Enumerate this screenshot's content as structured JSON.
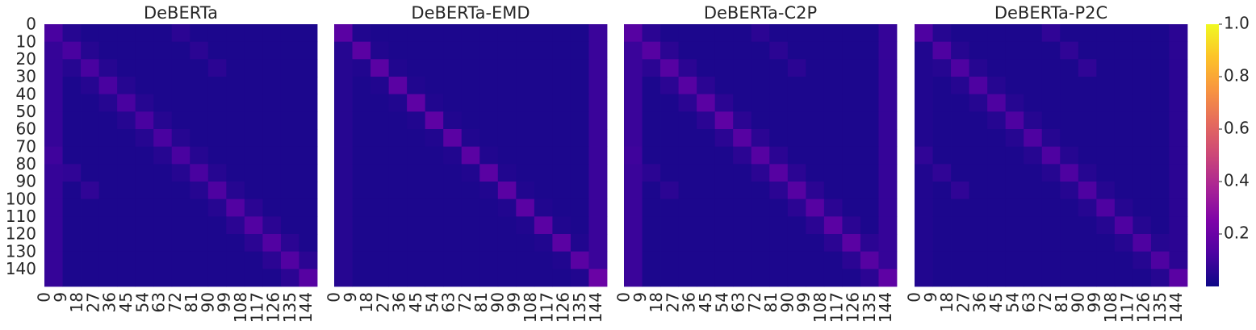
{
  "chart_data": [
    {
      "type": "heatmap",
      "title": "DeBERTa",
      "colormap": "plasma",
      "zlim": [
        0,
        1
      ],
      "xlim": [
        0,
        150
      ],
      "ylim": [
        0,
        150
      ],
      "xticks": [
        0,
        9,
        18,
        27,
        36,
        45,
        54,
        63,
        72,
        81,
        90,
        99,
        108,
        117,
        126,
        135,
        144
      ],
      "yticks": [
        0,
        10,
        20,
        30,
        40,
        50,
        60,
        70,
        80,
        90,
        100,
        110,
        120,
        130,
        140
      ],
      "z": [
        [
          0.12,
          0.05,
          0.03,
          0.03,
          0.03,
          0.03,
          0.03,
          0.06,
          0.03,
          0.03,
          0.03,
          0.03,
          0.03,
          0.03,
          0.03
        ],
        [
          0.08,
          0.12,
          0.05,
          0.03,
          0.03,
          0.03,
          0.03,
          0.03,
          0.06,
          0.03,
          0.03,
          0.03,
          0.03,
          0.03,
          0.03
        ],
        [
          0.08,
          0.05,
          0.12,
          0.05,
          0.03,
          0.03,
          0.03,
          0.03,
          0.03,
          0.06,
          0.03,
          0.03,
          0.03,
          0.03,
          0.03
        ],
        [
          0.08,
          0.03,
          0.05,
          0.12,
          0.05,
          0.03,
          0.03,
          0.03,
          0.03,
          0.03,
          0.03,
          0.03,
          0.03,
          0.03,
          0.03
        ],
        [
          0.08,
          0.03,
          0.03,
          0.05,
          0.12,
          0.05,
          0.03,
          0.03,
          0.03,
          0.03,
          0.03,
          0.03,
          0.03,
          0.03,
          0.03
        ],
        [
          0.08,
          0.03,
          0.03,
          0.03,
          0.05,
          0.12,
          0.05,
          0.03,
          0.03,
          0.03,
          0.03,
          0.03,
          0.03,
          0.03,
          0.03
        ],
        [
          0.08,
          0.03,
          0.03,
          0.03,
          0.03,
          0.05,
          0.12,
          0.05,
          0.03,
          0.03,
          0.03,
          0.03,
          0.03,
          0.03,
          0.03
        ],
        [
          0.1,
          0.03,
          0.03,
          0.03,
          0.03,
          0.03,
          0.05,
          0.12,
          0.05,
          0.03,
          0.03,
          0.03,
          0.03,
          0.03,
          0.03
        ],
        [
          0.08,
          0.07,
          0.03,
          0.03,
          0.03,
          0.03,
          0.03,
          0.05,
          0.12,
          0.05,
          0.03,
          0.03,
          0.03,
          0.03,
          0.03
        ],
        [
          0.08,
          0.03,
          0.07,
          0.03,
          0.03,
          0.03,
          0.03,
          0.03,
          0.05,
          0.13,
          0.05,
          0.03,
          0.03,
          0.03,
          0.03
        ],
        [
          0.08,
          0.03,
          0.03,
          0.03,
          0.03,
          0.03,
          0.03,
          0.03,
          0.03,
          0.05,
          0.14,
          0.06,
          0.03,
          0.03,
          0.03
        ],
        [
          0.08,
          0.03,
          0.03,
          0.03,
          0.03,
          0.03,
          0.03,
          0.03,
          0.03,
          0.03,
          0.06,
          0.14,
          0.06,
          0.03,
          0.03
        ],
        [
          0.08,
          0.03,
          0.03,
          0.03,
          0.03,
          0.03,
          0.03,
          0.03,
          0.03,
          0.03,
          0.03,
          0.06,
          0.14,
          0.06,
          0.03
        ],
        [
          0.08,
          0.03,
          0.03,
          0.03,
          0.03,
          0.03,
          0.03,
          0.03,
          0.03,
          0.03,
          0.03,
          0.03,
          0.06,
          0.14,
          0.06
        ],
        [
          0.08,
          0.03,
          0.03,
          0.03,
          0.03,
          0.03,
          0.03,
          0.03,
          0.03,
          0.03,
          0.03,
          0.03,
          0.03,
          0.06,
          0.15
        ]
      ]
    },
    {
      "type": "heatmap",
      "title": "DeBERTa-EMD",
      "colormap": "plasma",
      "zlim": [
        0,
        1
      ],
      "xlim": [
        0,
        150
      ],
      "ylim": [
        0,
        150
      ],
      "xticks": [
        0,
        9,
        18,
        27,
        36,
        45,
        54,
        63,
        72,
        81,
        90,
        99,
        108,
        117,
        126,
        135,
        144
      ],
      "z": [
        [
          0.16,
          0.04,
          0.03,
          0.03,
          0.03,
          0.03,
          0.03,
          0.03,
          0.03,
          0.03,
          0.03,
          0.03,
          0.03,
          0.03,
          0.09
        ],
        [
          0.05,
          0.16,
          0.04,
          0.03,
          0.03,
          0.03,
          0.03,
          0.03,
          0.03,
          0.03,
          0.03,
          0.03,
          0.03,
          0.03,
          0.09
        ],
        [
          0.05,
          0.04,
          0.16,
          0.04,
          0.03,
          0.03,
          0.03,
          0.03,
          0.03,
          0.03,
          0.03,
          0.03,
          0.03,
          0.03,
          0.09
        ],
        [
          0.05,
          0.03,
          0.04,
          0.16,
          0.04,
          0.03,
          0.03,
          0.03,
          0.03,
          0.03,
          0.03,
          0.03,
          0.03,
          0.03,
          0.09
        ],
        [
          0.05,
          0.03,
          0.03,
          0.04,
          0.17,
          0.04,
          0.03,
          0.03,
          0.03,
          0.03,
          0.03,
          0.03,
          0.03,
          0.03,
          0.09
        ],
        [
          0.05,
          0.03,
          0.03,
          0.03,
          0.04,
          0.17,
          0.04,
          0.03,
          0.03,
          0.03,
          0.03,
          0.03,
          0.03,
          0.03,
          0.09
        ],
        [
          0.05,
          0.03,
          0.03,
          0.03,
          0.03,
          0.04,
          0.16,
          0.04,
          0.03,
          0.03,
          0.03,
          0.03,
          0.03,
          0.03,
          0.09
        ],
        [
          0.05,
          0.03,
          0.03,
          0.03,
          0.03,
          0.03,
          0.04,
          0.16,
          0.04,
          0.03,
          0.03,
          0.03,
          0.03,
          0.03,
          0.09
        ],
        [
          0.05,
          0.03,
          0.03,
          0.03,
          0.03,
          0.03,
          0.03,
          0.04,
          0.16,
          0.04,
          0.03,
          0.03,
          0.03,
          0.03,
          0.09
        ],
        [
          0.05,
          0.03,
          0.03,
          0.03,
          0.03,
          0.03,
          0.03,
          0.03,
          0.04,
          0.16,
          0.04,
          0.03,
          0.03,
          0.03,
          0.09
        ],
        [
          0.05,
          0.03,
          0.03,
          0.03,
          0.03,
          0.03,
          0.03,
          0.03,
          0.03,
          0.04,
          0.16,
          0.04,
          0.03,
          0.03,
          0.09
        ],
        [
          0.05,
          0.03,
          0.03,
          0.03,
          0.03,
          0.03,
          0.03,
          0.03,
          0.03,
          0.03,
          0.04,
          0.16,
          0.04,
          0.03,
          0.09
        ],
        [
          0.05,
          0.03,
          0.03,
          0.03,
          0.03,
          0.03,
          0.03,
          0.03,
          0.03,
          0.03,
          0.03,
          0.04,
          0.16,
          0.04,
          0.09
        ],
        [
          0.05,
          0.03,
          0.03,
          0.03,
          0.03,
          0.03,
          0.03,
          0.03,
          0.03,
          0.03,
          0.03,
          0.03,
          0.04,
          0.16,
          0.09
        ],
        [
          0.05,
          0.03,
          0.03,
          0.03,
          0.03,
          0.03,
          0.03,
          0.03,
          0.03,
          0.03,
          0.03,
          0.03,
          0.03,
          0.04,
          0.2
        ]
      ]
    },
    {
      "type": "heatmap",
      "title": "DeBERTa-C2P",
      "colormap": "plasma",
      "zlim": [
        0,
        1
      ],
      "xlim": [
        0,
        150
      ],
      "ylim": [
        0,
        150
      ],
      "xticks": [
        0,
        9,
        18,
        27,
        36,
        45,
        54,
        63,
        72,
        81,
        90,
        99,
        108,
        117,
        126,
        135,
        144
      ],
      "z": [
        [
          0.15,
          0.06,
          0.03,
          0.03,
          0.03,
          0.03,
          0.03,
          0.06,
          0.03,
          0.03,
          0.03,
          0.03,
          0.03,
          0.03,
          0.08
        ],
        [
          0.09,
          0.15,
          0.06,
          0.03,
          0.03,
          0.03,
          0.03,
          0.03,
          0.06,
          0.03,
          0.03,
          0.03,
          0.03,
          0.03,
          0.08
        ],
        [
          0.09,
          0.06,
          0.15,
          0.06,
          0.03,
          0.03,
          0.03,
          0.03,
          0.03,
          0.06,
          0.03,
          0.03,
          0.03,
          0.03,
          0.08
        ],
        [
          0.09,
          0.03,
          0.06,
          0.15,
          0.06,
          0.03,
          0.03,
          0.03,
          0.03,
          0.03,
          0.03,
          0.03,
          0.03,
          0.03,
          0.08
        ],
        [
          0.09,
          0.03,
          0.03,
          0.06,
          0.16,
          0.06,
          0.03,
          0.03,
          0.03,
          0.03,
          0.03,
          0.03,
          0.03,
          0.03,
          0.08
        ],
        [
          0.09,
          0.03,
          0.03,
          0.03,
          0.06,
          0.17,
          0.06,
          0.03,
          0.03,
          0.03,
          0.03,
          0.03,
          0.03,
          0.03,
          0.08
        ],
        [
          0.09,
          0.03,
          0.03,
          0.03,
          0.03,
          0.06,
          0.15,
          0.06,
          0.03,
          0.03,
          0.03,
          0.03,
          0.03,
          0.03,
          0.08
        ],
        [
          0.1,
          0.03,
          0.03,
          0.03,
          0.03,
          0.03,
          0.06,
          0.15,
          0.06,
          0.03,
          0.03,
          0.03,
          0.03,
          0.03,
          0.08
        ],
        [
          0.09,
          0.06,
          0.03,
          0.03,
          0.03,
          0.03,
          0.03,
          0.06,
          0.15,
          0.06,
          0.03,
          0.03,
          0.03,
          0.03,
          0.08
        ],
        [
          0.09,
          0.03,
          0.06,
          0.03,
          0.03,
          0.03,
          0.03,
          0.03,
          0.06,
          0.15,
          0.06,
          0.03,
          0.03,
          0.03,
          0.08
        ],
        [
          0.09,
          0.03,
          0.03,
          0.03,
          0.03,
          0.03,
          0.03,
          0.03,
          0.03,
          0.06,
          0.15,
          0.06,
          0.03,
          0.03,
          0.08
        ],
        [
          0.09,
          0.03,
          0.03,
          0.03,
          0.03,
          0.03,
          0.03,
          0.03,
          0.03,
          0.03,
          0.06,
          0.16,
          0.06,
          0.03,
          0.08
        ],
        [
          0.09,
          0.03,
          0.03,
          0.03,
          0.03,
          0.03,
          0.03,
          0.03,
          0.03,
          0.03,
          0.03,
          0.06,
          0.16,
          0.06,
          0.08
        ],
        [
          0.09,
          0.03,
          0.03,
          0.03,
          0.03,
          0.03,
          0.03,
          0.03,
          0.03,
          0.03,
          0.03,
          0.03,
          0.06,
          0.15,
          0.08
        ],
        [
          0.09,
          0.03,
          0.03,
          0.03,
          0.03,
          0.03,
          0.03,
          0.03,
          0.03,
          0.03,
          0.03,
          0.03,
          0.03,
          0.06,
          0.17
        ]
      ]
    },
    {
      "type": "heatmap",
      "title": "DeBERTa-P2C",
      "colormap": "plasma",
      "zlim": [
        0,
        1
      ],
      "xlim": [
        0,
        150
      ],
      "ylim": [
        0,
        150
      ],
      "xticks": [
        0,
        9,
        18,
        27,
        36,
        45,
        54,
        63,
        72,
        81,
        90,
        99,
        108,
        117,
        126,
        135,
        144
      ],
      "zticks": [
        0.2,
        0.4,
        0.6,
        0.8,
        {
          "value": 1,
          "label": "1.0"
        }
      ],
      "colorbar": true,
      "z": [
        [
          0.13,
          0.05,
          0.03,
          0.03,
          0.03,
          0.03,
          0.03,
          0.07,
          0.03,
          0.03,
          0.03,
          0.03,
          0.03,
          0.03,
          0.06
        ],
        [
          0.04,
          0.13,
          0.05,
          0.03,
          0.03,
          0.03,
          0.03,
          0.03,
          0.07,
          0.03,
          0.03,
          0.03,
          0.03,
          0.03,
          0.06
        ],
        [
          0.04,
          0.05,
          0.13,
          0.05,
          0.03,
          0.03,
          0.03,
          0.03,
          0.03,
          0.07,
          0.03,
          0.03,
          0.03,
          0.03,
          0.06
        ],
        [
          0.04,
          0.03,
          0.05,
          0.13,
          0.05,
          0.03,
          0.03,
          0.03,
          0.03,
          0.03,
          0.03,
          0.03,
          0.03,
          0.03,
          0.06
        ],
        [
          0.04,
          0.03,
          0.03,
          0.05,
          0.13,
          0.05,
          0.03,
          0.03,
          0.03,
          0.03,
          0.03,
          0.03,
          0.03,
          0.03,
          0.06
        ],
        [
          0.04,
          0.03,
          0.03,
          0.03,
          0.05,
          0.13,
          0.05,
          0.03,
          0.03,
          0.03,
          0.03,
          0.03,
          0.03,
          0.03,
          0.06
        ],
        [
          0.04,
          0.03,
          0.03,
          0.03,
          0.03,
          0.05,
          0.13,
          0.05,
          0.03,
          0.03,
          0.03,
          0.03,
          0.03,
          0.03,
          0.06
        ],
        [
          0.07,
          0.03,
          0.03,
          0.03,
          0.03,
          0.03,
          0.05,
          0.13,
          0.05,
          0.03,
          0.03,
          0.03,
          0.03,
          0.03,
          0.06
        ],
        [
          0.04,
          0.07,
          0.03,
          0.03,
          0.03,
          0.03,
          0.03,
          0.05,
          0.13,
          0.05,
          0.03,
          0.03,
          0.03,
          0.03,
          0.06
        ],
        [
          0.04,
          0.03,
          0.07,
          0.03,
          0.03,
          0.03,
          0.03,
          0.03,
          0.05,
          0.13,
          0.05,
          0.03,
          0.03,
          0.03,
          0.06
        ],
        [
          0.04,
          0.03,
          0.03,
          0.03,
          0.03,
          0.03,
          0.03,
          0.03,
          0.03,
          0.05,
          0.13,
          0.05,
          0.03,
          0.03,
          0.06
        ],
        [
          0.04,
          0.03,
          0.03,
          0.03,
          0.03,
          0.03,
          0.03,
          0.03,
          0.03,
          0.03,
          0.05,
          0.13,
          0.05,
          0.03,
          0.06
        ],
        [
          0.04,
          0.03,
          0.03,
          0.03,
          0.03,
          0.03,
          0.03,
          0.03,
          0.03,
          0.03,
          0.03,
          0.05,
          0.13,
          0.05,
          0.06
        ],
        [
          0.04,
          0.03,
          0.03,
          0.03,
          0.03,
          0.03,
          0.03,
          0.03,
          0.03,
          0.03,
          0.03,
          0.03,
          0.05,
          0.13,
          0.06
        ],
        [
          0.04,
          0.03,
          0.03,
          0.03,
          0.03,
          0.03,
          0.03,
          0.03,
          0.03,
          0.03,
          0.03,
          0.03,
          0.03,
          0.05,
          0.16
        ]
      ]
    }
  ]
}
